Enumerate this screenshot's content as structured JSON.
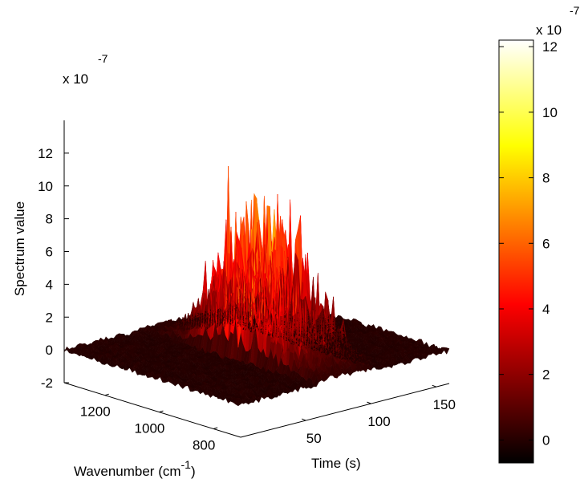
{
  "chart_data": {
    "type": "surface",
    "colormap": "hot",
    "zlabel": "Spectrum value",
    "xlabel_main": "Wavenumber (cm",
    "xlabel_sup": "-1",
    "xlabel_close": ")",
    "ylabel": "Time (s)",
    "zscale_base": "x 10",
    "zscale_exp": "-7",
    "xlim": [
      700,
      1350
    ],
    "ylim": [
      0,
      160
    ],
    "zlim": [
      -2,
      14
    ],
    "wavenumber_ticks": [
      "1200",
      "1000",
      "800"
    ],
    "time_ticks": [
      "50",
      "100",
      "150"
    ],
    "z_ticks": [
      "-2",
      "0",
      "2",
      "4",
      "6",
      "8",
      "10",
      "12"
    ],
    "peak_band": {
      "time_start": 60,
      "time_end": 105,
      "typical_value_range": [
        4,
        9
      ],
      "max_value": 11.5
    },
    "baseline_value": 0,
    "colorbar": {
      "scale_base": "x 10",
      "scale_exp": "-7",
      "range": [
        -0.7,
        12.2
      ],
      "ticks": [
        "0",
        "2",
        "4",
        "6",
        "8",
        "10",
        "12"
      ]
    }
  }
}
